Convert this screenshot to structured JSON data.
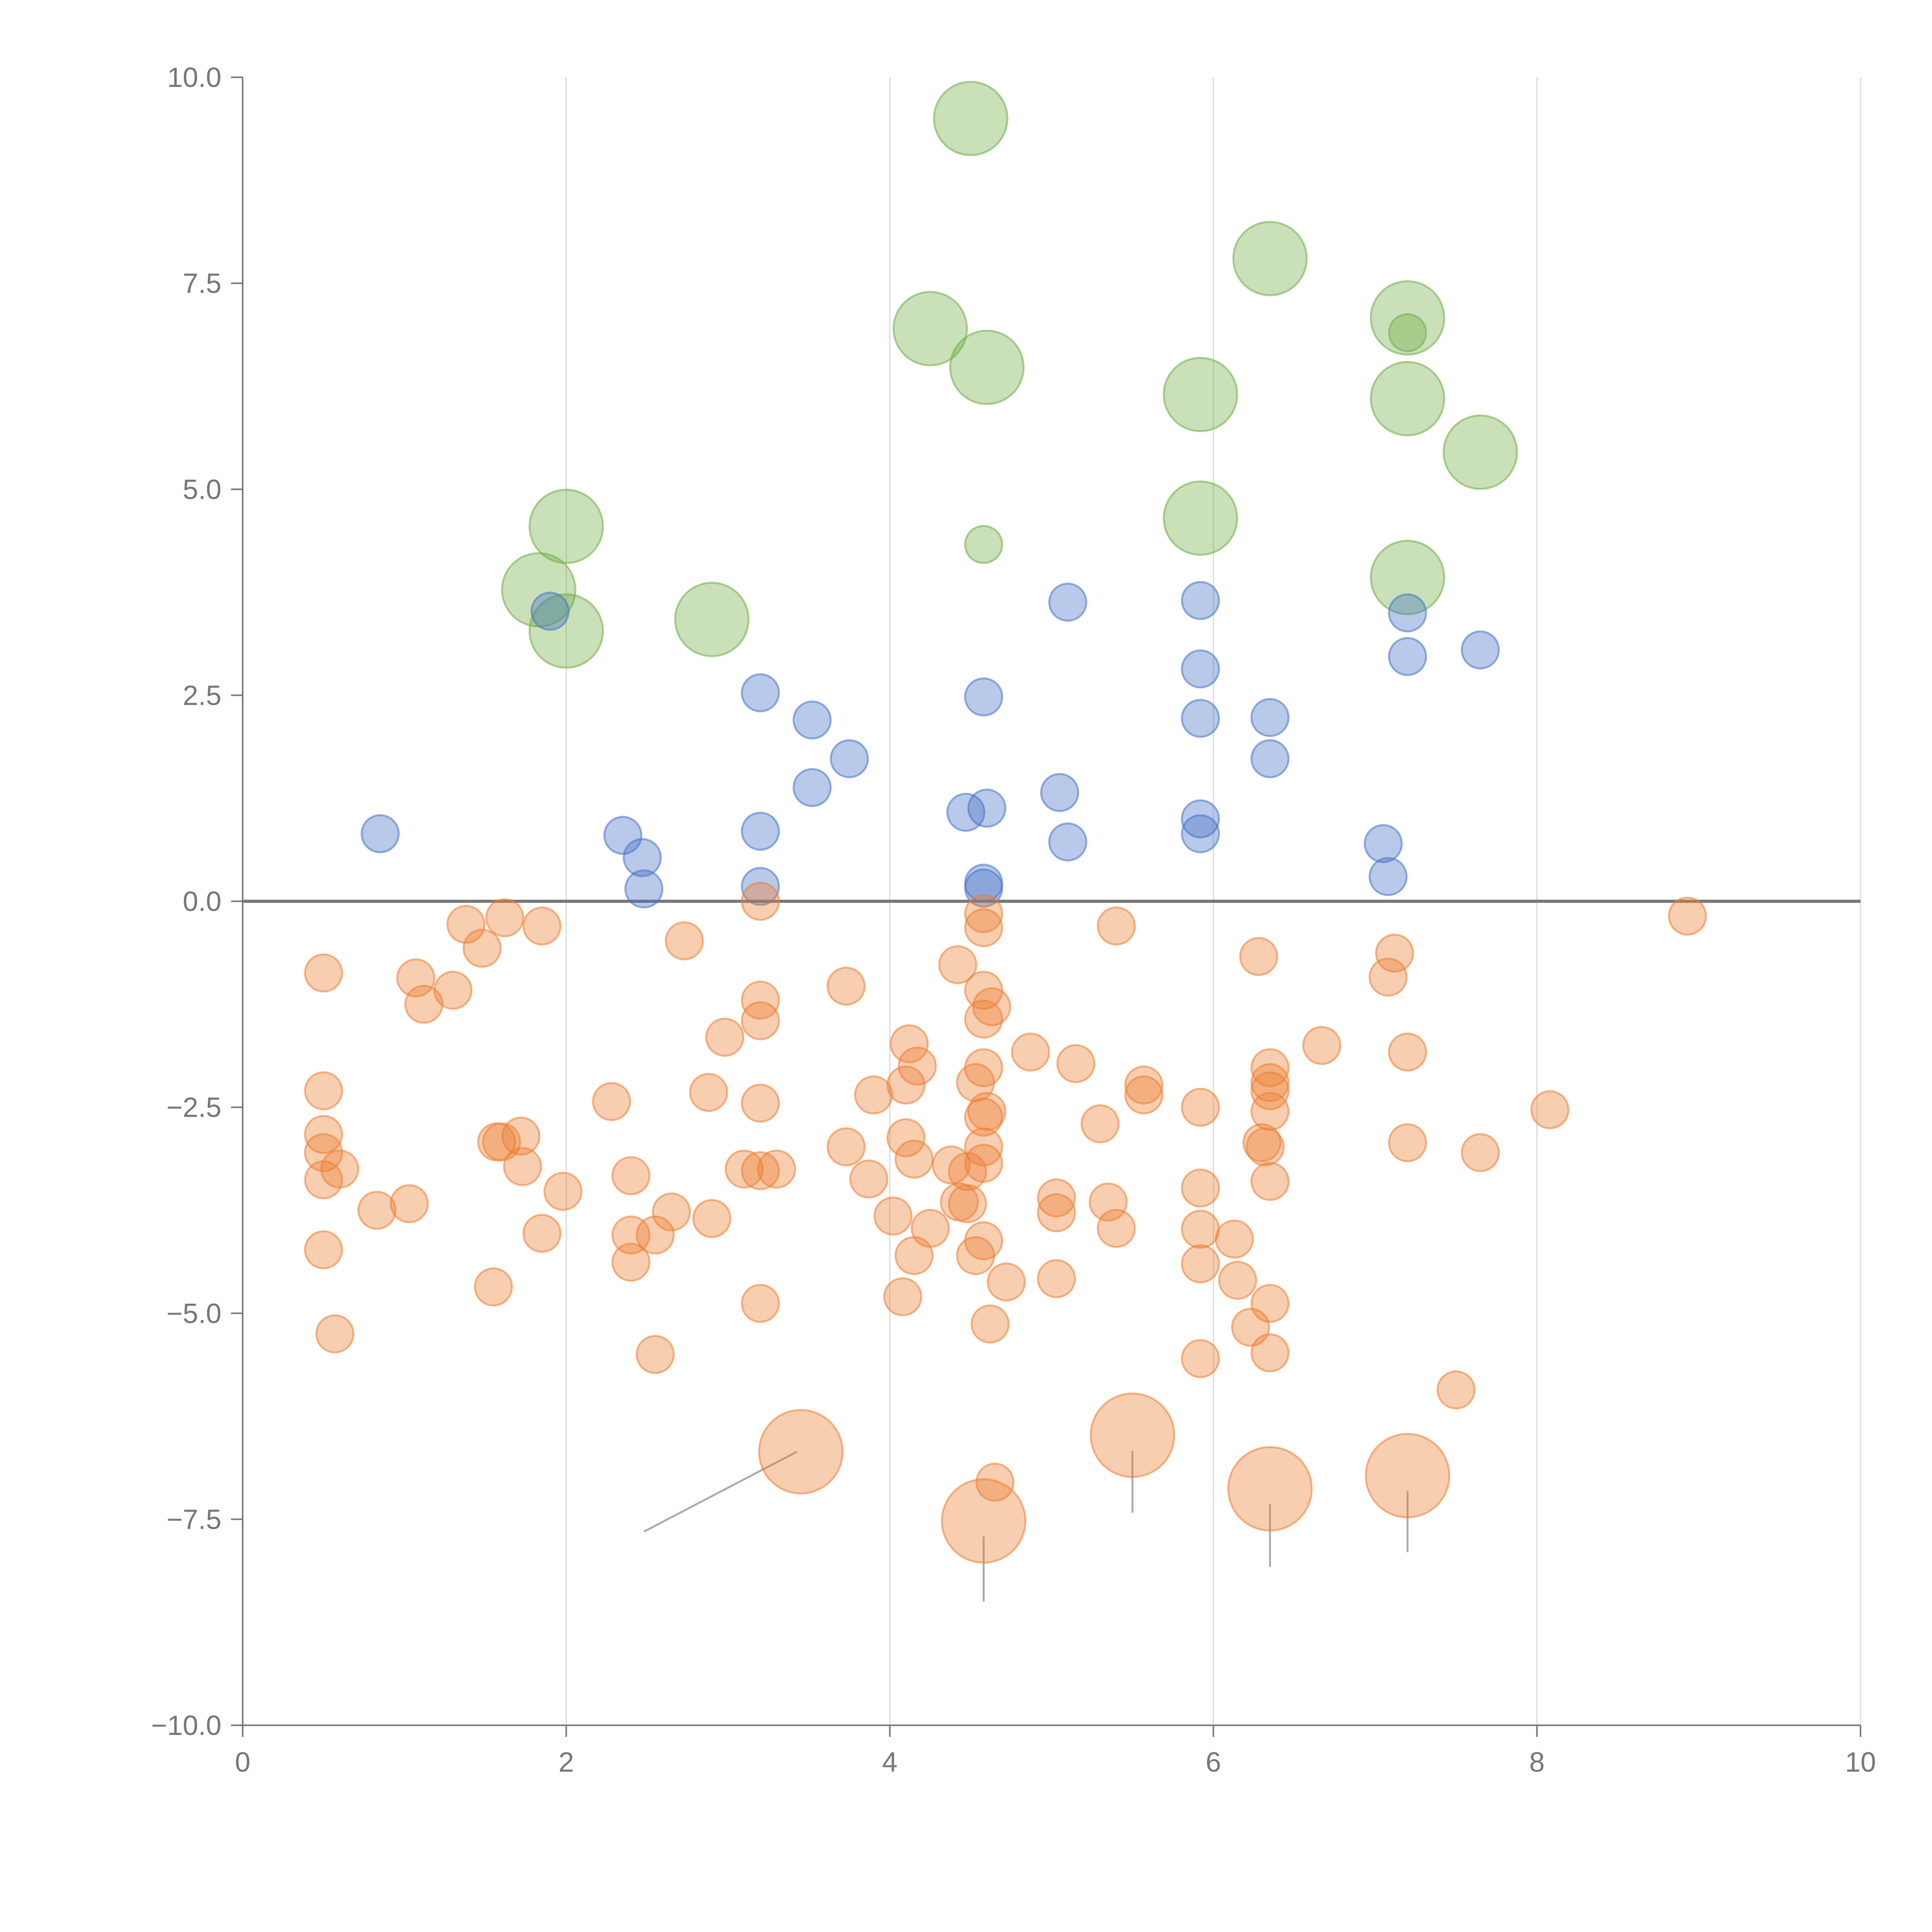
{
  "colors": {
    "positive_small": "#4472c4",
    "positive_large": "#70ad47",
    "negative": "#ed7d31",
    "axis": "#777777",
    "grid": "#d9d9d9"
  },
  "chart_data": {
    "type": "scatter",
    "title": "",
    "xlabel": "",
    "ylabel": "",
    "xlim": [
      0,
      10
    ],
    "ylim": [
      -10,
      10
    ],
    "x_ticks": [
      0,
      2,
      4,
      6,
      8,
      10
    ],
    "y_ticks": [
      -10,
      -7.5,
      -5,
      -2.5,
      0,
      2.5,
      5,
      7.5,
      10
    ],
    "x_tick_labels": [
      "0",
      "2",
      "4",
      "6",
      "8",
      "10"
    ],
    "y_tick_labels": [
      "−10.0",
      "−7.5",
      "−5.0",
      "−2.5",
      "0.0",
      "2.5",
      "5.0",
      "7.5",
      "10.0"
    ],
    "grid": "vertical",
    "zero_line": true,
    "series": [
      {
        "color": "#70ad47",
        "points": [
          {
            "x": 4.5,
            "y": 9.5,
            "size": 3
          },
          {
            "x": 6.35,
            "y": 7.8,
            "size": 3
          },
          {
            "x": 4.25,
            "y": 6.95,
            "size": 3
          },
          {
            "x": 7.2,
            "y": 7.08,
            "size": 3
          },
          {
            "x": 7.2,
            "y": 6.9,
            "size": 1
          },
          {
            "x": 4.6,
            "y": 6.48,
            "size": 3
          },
          {
            "x": 5.92,
            "y": 6.15,
            "size": 3
          },
          {
            "x": 7.2,
            "y": 6.1,
            "size": 3
          },
          {
            "x": 7.65,
            "y": 5.45,
            "size": 3
          },
          {
            "x": 2.0,
            "y": 4.55,
            "size": 3
          },
          {
            "x": 5.92,
            "y": 4.65,
            "size": 3
          },
          {
            "x": 4.58,
            "y": 4.33,
            "size": 1
          },
          {
            "x": 1.83,
            "y": 3.78,
            "size": 3
          },
          {
            "x": 7.2,
            "y": 3.93,
            "size": 3
          },
          {
            "x": 2.0,
            "y": 3.28,
            "size": 3
          },
          {
            "x": 2.9,
            "y": 3.42,
            "size": 3
          }
        ]
      },
      {
        "color": "#4472c4",
        "points": [
          {
            "x": 5.1,
            "y": 3.63
          },
          {
            "x": 5.92,
            "y": 3.65
          },
          {
            "x": 1.9,
            "y": 3.52
          },
          {
            "x": 7.2,
            "y": 3.5
          },
          {
            "x": 7.65,
            "y": 3.05
          },
          {
            "x": 7.2,
            "y": 2.97
          },
          {
            "x": 5.92,
            "y": 2.82
          },
          {
            "x": 3.2,
            "y": 2.53
          },
          {
            "x": 4.58,
            "y": 2.48
          },
          {
            "x": 3.52,
            "y": 2.2
          },
          {
            "x": 5.92,
            "y": 2.22
          },
          {
            "x": 6.35,
            "y": 2.23
          },
          {
            "x": 3.75,
            "y": 1.73
          },
          {
            "x": 6.35,
            "y": 1.73
          },
          {
            "x": 3.52,
            "y": 1.38
          },
          {
            "x": 5.05,
            "y": 1.32
          },
          {
            "x": 4.47,
            "y": 1.08
          },
          {
            "x": 4.6,
            "y": 1.13
          },
          {
            "x": 5.92,
            "y": 1.0
          },
          {
            "x": 0.85,
            "y": 0.82
          },
          {
            "x": 2.35,
            "y": 0.8
          },
          {
            "x": 3.2,
            "y": 0.85
          },
          {
            "x": 5.92,
            "y": 0.82
          },
          {
            "x": 5.1,
            "y": 0.72
          },
          {
            "x": 7.05,
            "y": 0.7
          },
          {
            "x": 2.47,
            "y": 0.53
          },
          {
            "x": 7.08,
            "y": 0.3
          },
          {
            "x": 2.48,
            "y": 0.15
          },
          {
            "x": 3.2,
            "y": 0.18
          },
          {
            "x": 4.58,
            "y": 0.22
          },
          {
            "x": 4.58,
            "y": 0.16
          }
        ]
      },
      {
        "color": "#ed7d31",
        "points": [
          {
            "x": 3.2,
            "y": 0.0
          },
          {
            "x": 8.93,
            "y": -0.18
          },
          {
            "x": 1.62,
            "y": -0.2
          },
          {
            "x": 4.58,
            "y": -0.15
          },
          {
            "x": 1.38,
            "y": -0.28
          },
          {
            "x": 1.85,
            "y": -0.3
          },
          {
            "x": 4.58,
            "y": -0.32
          },
          {
            "x": 5.4,
            "y": -0.3
          },
          {
            "x": 1.48,
            "y": -0.57
          },
          {
            "x": 2.73,
            "y": -0.48
          },
          {
            "x": 6.28,
            "y": -0.67
          },
          {
            "x": 7.12,
            "y": -0.63
          },
          {
            "x": 4.42,
            "y": -0.77
          },
          {
            "x": 0.5,
            "y": -0.87
          },
          {
            "x": 7.08,
            "y": -0.92
          },
          {
            "x": 1.07,
            "y": -0.93
          },
          {
            "x": 1.3,
            "y": -1.08
          },
          {
            "x": 3.73,
            "y": -1.03
          },
          {
            "x": 4.58,
            "y": -1.08
          },
          {
            "x": 1.12,
            "y": -1.25
          },
          {
            "x": 3.2,
            "y": -1.2
          },
          {
            "x": 4.63,
            "y": -1.28
          },
          {
            "x": 3.2,
            "y": -1.45
          },
          {
            "x": 4.58,
            "y": -1.43
          },
          {
            "x": 2.98,
            "y": -1.65
          },
          {
            "x": 4.12,
            "y": -1.73
          },
          {
            "x": 6.67,
            "y": -1.75
          },
          {
            "x": 4.87,
            "y": -1.83
          },
          {
            "x": 7.2,
            "y": -1.83
          },
          {
            "x": 5.15,
            "y": -1.97
          },
          {
            "x": 4.17,
            "y": -2.0
          },
          {
            "x": 4.58,
            "y": -2.02
          },
          {
            "x": 6.35,
            "y": -2.02
          },
          {
            "x": 4.1,
            "y": -2.23
          },
          {
            "x": 4.53,
            "y": -2.2
          },
          {
            "x": 5.57,
            "y": -2.23
          },
          {
            "x": 6.35,
            "y": -2.2
          },
          {
            "x": 0.5,
            "y": -2.3
          },
          {
            "x": 2.88,
            "y": -2.32
          },
          {
            "x": 3.9,
            "y": -2.35
          },
          {
            "x": 6.35,
            "y": -2.3
          },
          {
            "x": 5.57,
            "y": -2.35
          },
          {
            "x": 2.28,
            "y": -2.43
          },
          {
            "x": 3.2,
            "y": -2.45
          },
          {
            "x": 5.92,
            "y": -2.5
          },
          {
            "x": 8.08,
            "y": -2.53
          },
          {
            "x": 4.6,
            "y": -2.55
          },
          {
            "x": 6.35,
            "y": -2.55
          },
          {
            "x": 4.58,
            "y": -2.62
          },
          {
            "x": 5.3,
            "y": -2.7
          },
          {
            "x": 0.5,
            "y": -2.83
          },
          {
            "x": 1.72,
            "y": -2.85
          },
          {
            "x": 1.57,
            "y": -2.92
          },
          {
            "x": 1.6,
            "y": -2.92
          },
          {
            "x": 4.1,
            "y": -2.87
          },
          {
            "x": 7.2,
            "y": -2.93
          },
          {
            "x": 6.3,
            "y": -2.93
          },
          {
            "x": 6.32,
            "y": -2.98
          },
          {
            "x": 3.73,
            "y": -2.98
          },
          {
            "x": 4.58,
            "y": -2.98
          },
          {
            "x": 0.5,
            "y": -3.05
          },
          {
            "x": 7.65,
            "y": -3.05
          },
          {
            "x": 4.15,
            "y": -3.13
          },
          {
            "x": 4.58,
            "y": -3.18
          },
          {
            "x": 0.6,
            "y": -3.25
          },
          {
            "x": 1.73,
            "y": -3.22
          },
          {
            "x": 3.1,
            "y": -3.25
          },
          {
            "x": 3.3,
            "y": -3.25
          },
          {
            "x": 3.2,
            "y": -3.27
          },
          {
            "x": 4.38,
            "y": -3.2
          },
          {
            "x": 4.48,
            "y": -3.28
          },
          {
            "x": 2.4,
            "y": -3.33
          },
          {
            "x": 3.87,
            "y": -3.37
          },
          {
            "x": 0.5,
            "y": -3.38
          },
          {
            "x": 6.35,
            "y": -3.4
          },
          {
            "x": 1.98,
            "y": -3.52
          },
          {
            "x": 5.92,
            "y": -3.48
          },
          {
            "x": 5.03,
            "y": -3.6
          },
          {
            "x": 4.43,
            "y": -3.65
          },
          {
            "x": 4.48,
            "y": -3.67
          },
          {
            "x": 5.35,
            "y": -3.65
          },
          {
            "x": 1.03,
            "y": -3.67
          },
          {
            "x": 0.83,
            "y": -3.75
          },
          {
            "x": 2.65,
            "y": -3.77
          },
          {
            "x": 5.03,
            "y": -3.78
          },
          {
            "x": 4.02,
            "y": -3.82
          },
          {
            "x": 2.9,
            "y": -3.85
          },
          {
            "x": 4.25,
            "y": -3.97
          },
          {
            "x": 5.4,
            "y": -3.97
          },
          {
            "x": 5.92,
            "y": -3.98
          },
          {
            "x": 1.85,
            "y": -4.03
          },
          {
            "x": 2.4,
            "y": -4.05
          },
          {
            "x": 2.55,
            "y": -4.05
          },
          {
            "x": 6.13,
            "y": -4.1
          },
          {
            "x": 4.58,
            "y": -4.12
          },
          {
            "x": 0.5,
            "y": -4.23
          },
          {
            "x": 4.53,
            "y": -4.3
          },
          {
            "x": 4.15,
            "y": -4.3
          },
          {
            "x": 2.4,
            "y": -4.38
          },
          {
            "x": 5.92,
            "y": -4.4
          },
          {
            "x": 5.03,
            "y": -4.58
          },
          {
            "x": 6.15,
            "y": -4.6
          },
          {
            "x": 4.72,
            "y": -4.62
          },
          {
            "x": 1.55,
            "y": -4.68
          },
          {
            "x": 4.08,
            "y": -4.8
          },
          {
            "x": 3.2,
            "y": -4.88
          },
          {
            "x": 6.35,
            "y": -4.88
          },
          {
            "x": 4.62,
            "y": -5.13
          },
          {
            "x": 6.23,
            "y": -5.17
          },
          {
            "x": 0.57,
            "y": -5.25
          },
          {
            "x": 6.35,
            "y": -5.48
          },
          {
            "x": 2.55,
            "y": -5.5
          },
          {
            "x": 5.92,
            "y": -5.55
          },
          {
            "x": 7.5,
            "y": -5.93
          },
          {
            "x": 4.65,
            "y": -7.05
          },
          {
            "x": 3.45,
            "y": -6.68,
            "size": 3,
            "callout_to": [
              2.48,
              -7.65
            ]
          },
          {
            "x": 5.5,
            "y": -6.48,
            "size": 3,
            "callout_to": [
              5.5,
              -7.42
            ]
          },
          {
            "x": 6.35,
            "y": -7.13,
            "size": 3,
            "callout_to": [
              6.35,
              -8.08
            ]
          },
          {
            "x": 7.2,
            "y": -6.97,
            "size": 3,
            "callout_to": [
              7.2,
              -7.9
            ]
          },
          {
            "x": 4.58,
            "y": -7.52,
            "size": 3,
            "callout_to": [
              4.58,
              -8.5
            ]
          }
        ]
      }
    ]
  }
}
